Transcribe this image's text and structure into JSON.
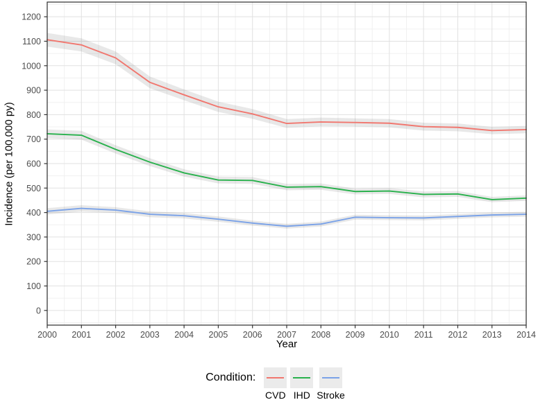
{
  "figure": {
    "x_axis_title": "Year",
    "y_axis_title": "Incidence (per 100,000 py)"
  },
  "legend": {
    "title": "Condition:",
    "items": [
      {
        "label": "CVD",
        "color": "#F1766E"
      },
      {
        "label": "IHD",
        "color": "#28B14C"
      },
      {
        "label": "Stroke",
        "color": "#7AA2E8"
      }
    ]
  },
  "chart_data": {
    "type": "line",
    "title": "",
    "xlabel": "Year",
    "ylabel": "Incidence (per 100,000 py)",
    "x": [
      2000,
      2001,
      2002,
      2003,
      2004,
      2005,
      2006,
      2007,
      2008,
      2009,
      2010,
      2011,
      2012,
      2013,
      2014
    ],
    "series": [
      {
        "name": "CVD",
        "color": "#F1766E",
        "values": [
          1106,
          1085,
          1032,
          932,
          881,
          832,
          803,
          764,
          770,
          768,
          765,
          751,
          748,
          735,
          739
        ],
        "ci_halfwidth": [
          28,
          27,
          26,
          24,
          22,
          21,
          20,
          18,
          18,
          17,
          17,
          16,
          16,
          15,
          15
        ]
      },
      {
        "name": "IHD",
        "color": "#28B14C",
        "values": [
          722,
          716,
          658,
          606,
          562,
          533,
          531,
          504,
          506,
          486,
          488,
          474,
          476,
          453,
          459
        ],
        "ci_halfwidth": [
          18,
          18,
          17,
          16,
          15,
          14,
          14,
          13,
          13,
          12,
          12,
          12,
          12,
          11,
          11
        ]
      },
      {
        "name": "Stroke",
        "color": "#7AA2E8",
        "values": [
          405,
          417,
          410,
          393,
          387,
          373,
          357,
          344,
          353,
          381,
          379,
          378,
          384,
          390,
          393
        ],
        "ci_halfwidth": [
          13,
          13,
          12,
          12,
          11,
          11,
          10,
          10,
          10,
          10,
          10,
          10,
          10,
          10,
          10
        ]
      }
    ],
    "xlim": [
      2000,
      2014
    ],
    "ylim": [
      0,
      1200
    ],
    "x_ticks": [
      2000,
      2001,
      2002,
      2003,
      2004,
      2005,
      2006,
      2007,
      2008,
      2009,
      2010,
      2011,
      2012,
      2013,
      2014
    ],
    "y_ticks": [
      0,
      100,
      200,
      300,
      400,
      500,
      600,
      700,
      800,
      900,
      1000,
      1100,
      1200
    ],
    "grid": "major+minor",
    "legend_position": "bottom",
    "band_color": "rgba(110,110,110,0.16)",
    "grid_major_color": "#E1E1E1",
    "grid_minor_color": "#F0F0F0",
    "panel_border_color": "#2B2B2B",
    "tick_color": "#333333",
    "tick_label_color": "#4D4D4D"
  }
}
